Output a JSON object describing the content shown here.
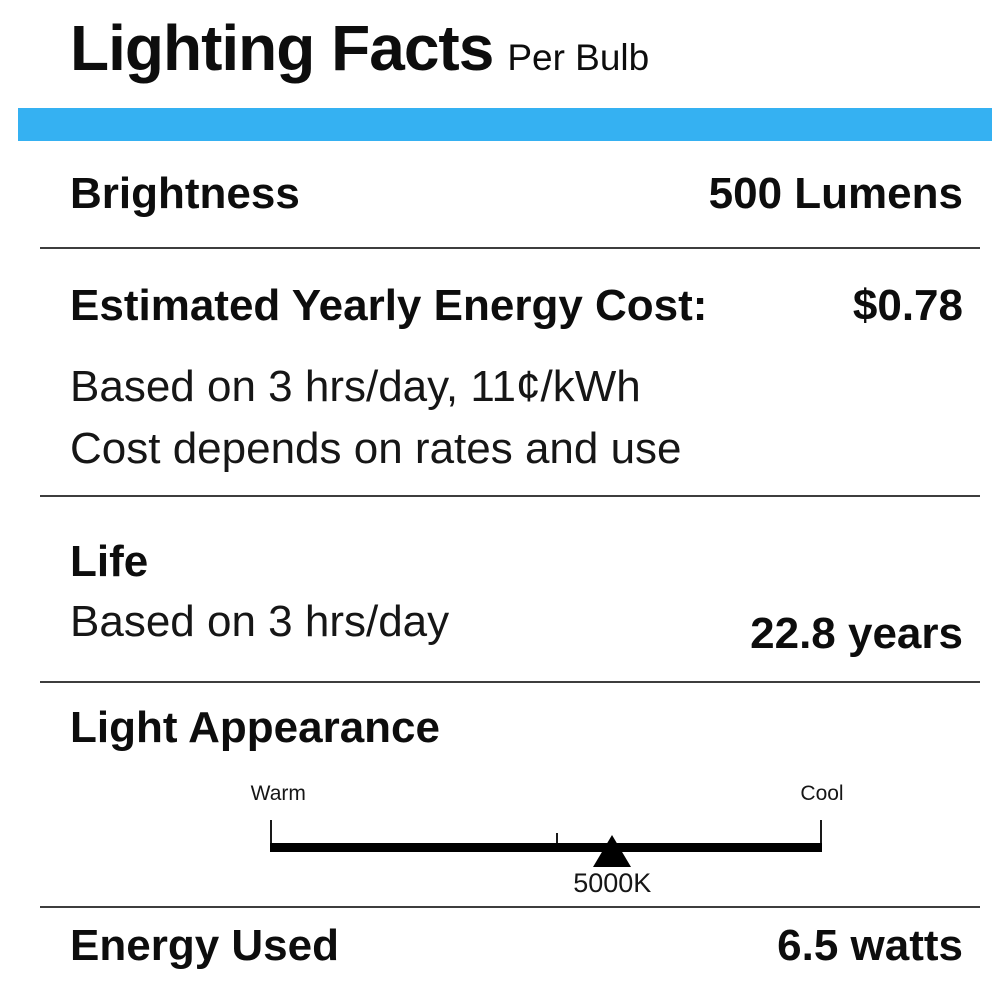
{
  "colors": {
    "accent": "#35b1f2"
  },
  "header": {
    "title": "Lighting Facts",
    "subtitle": "Per Bulb"
  },
  "brightness": {
    "label": "Brightness",
    "value": "500 Lumens"
  },
  "energy_cost": {
    "label": "Estimated Yearly Energy Cost:",
    "value": "$0.78",
    "notes": [
      "Based on 3 hrs/day, 11¢/kWh",
      "Cost depends on rates and use"
    ]
  },
  "life": {
    "label": "Life",
    "note": "Based on 3 hrs/day",
    "value": "22.8 years"
  },
  "light_appearance": {
    "label": "Light Appearance",
    "scale": {
      "left_label": "Warm",
      "right_label": "Cool",
      "marker_value": "5000K",
      "marker_position_pct": 62,
      "midpoint_tick_pct": 52
    }
  },
  "energy_used": {
    "label": "Energy Used",
    "value": "6.5 watts"
  }
}
